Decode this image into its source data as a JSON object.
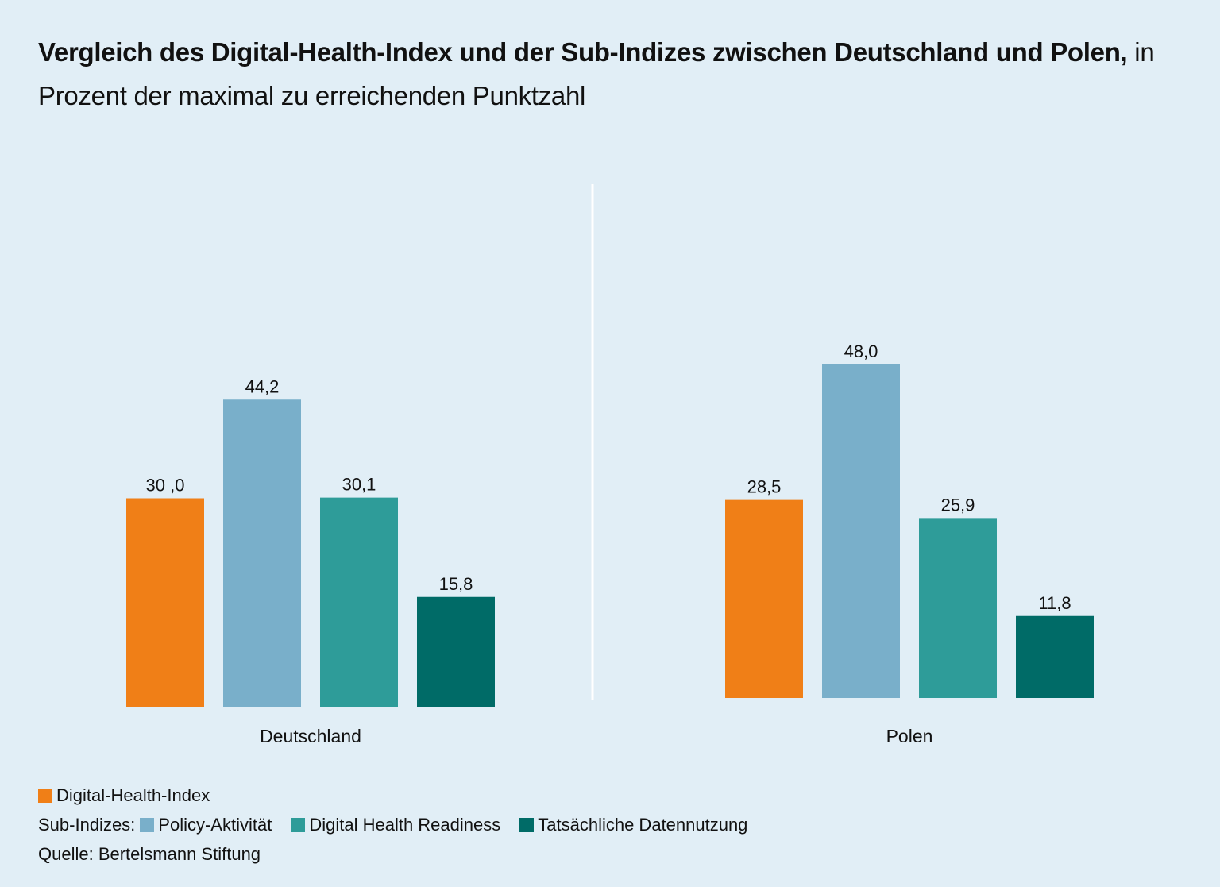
{
  "title": {
    "bold": "Vergleich des Digital-Health-Index und der Sub-Indizes zwischen Deutschland und Polen,",
    "rest": " in Prozent der maximal zu erreichenden Punktzahl"
  },
  "chart_data": {
    "type": "bar",
    "title": "Vergleich des Digital-Health-Index und der Sub-Indizes zwischen Deutschland und Polen, in Prozent der maximal zu erreichenden Punktzahl",
    "xlabel": "",
    "ylabel": "",
    "ylim": [
      0,
      50
    ],
    "grid": false,
    "legend_position": "bottom-left",
    "categories": [
      "Deutschland",
      "Polen"
    ],
    "series": [
      {
        "name": "Digital-Health-Index",
        "color": "#f07f17",
        "values": [
          30.0,
          28.5
        ],
        "labels": [
          "30 ,0",
          "28,5"
        ]
      },
      {
        "name": "Policy-Aktivität",
        "color": "#79afca",
        "values": [
          44.2,
          48.0
        ],
        "labels": [
          "44,2",
          "48,0"
        ]
      },
      {
        "name": "Digital Health Readiness",
        "color": "#2e9c99",
        "values": [
          30.1,
          25.9
        ],
        "labels": [
          "30,1",
          "25,9"
        ]
      },
      {
        "name": "Tatsächliche Datennutzung",
        "color": "#006b67",
        "values": [
          15.8,
          11.8
        ],
        "labels": [
          "15,8",
          "11,8"
        ]
      }
    ]
  },
  "legend": {
    "main_label": "Digital-Health-Index",
    "sub_prefix": "Sub-Indizes:",
    "sub_items": [
      "Policy-Aktivität",
      "Digital Health Readiness",
      "Tatsächliche Datennutzung"
    ],
    "colors": {
      "main": "#f07f17",
      "sub": [
        "#79afca",
        "#2e9c99",
        "#006b67"
      ]
    }
  },
  "source": "Quelle: Bertelsmann Stiftung",
  "colors": {
    "background": "#e1eef6",
    "divider": "#ffffff"
  }
}
